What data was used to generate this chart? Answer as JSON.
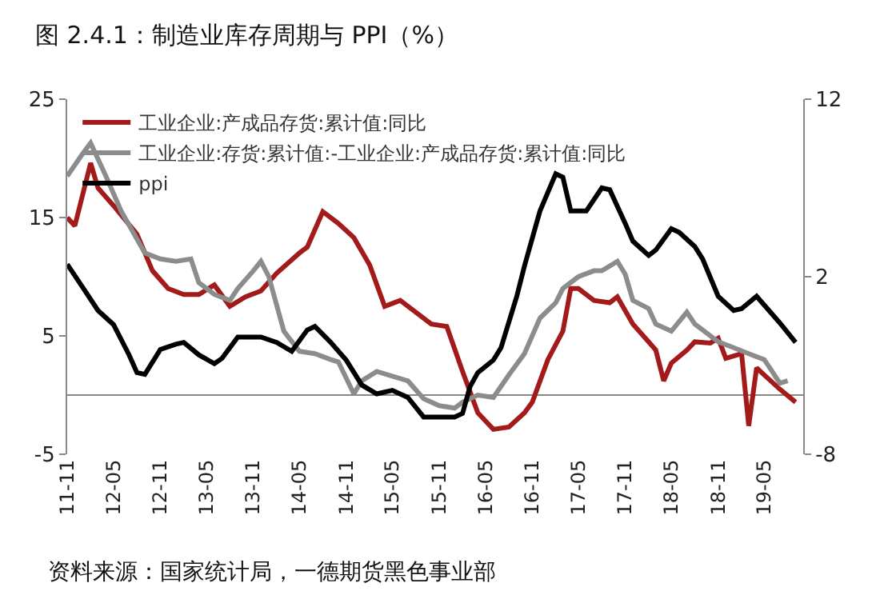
{
  "chart_data": {
    "type": "line",
    "title": "图 2.4.1：制造业库存周期与 PPI（%）",
    "annotations": [
      "资料来源：国家统计局，一德期货黑色事业部"
    ],
    "series": [
      {
        "name": "工业企业:产成品存货:累计值:同比",
        "color": "#a31a1a",
        "x": [
          "2011-11",
          "2011-12",
          "2012-02",
          "2012-03",
          "2012-05",
          "2012-08",
          "2012-10",
          "2012-12",
          "2013-02",
          "2013-04",
          "2013-06",
          "2013-08",
          "2013-10",
          "2013-12",
          "2014-02",
          "2014-05",
          "2014-06",
          "2014-08",
          "2014-10",
          "2014-12",
          "2015-02",
          "2015-04",
          "2015-06",
          "2015-08",
          "2015-10",
          "2015-12",
          "2016-02",
          "2016-04",
          "2016-06",
          "2016-08",
          "2016-10",
          "2016-11",
          "2017-01",
          "2017-03",
          "2017-04",
          "2017-05",
          "2017-07",
          "2017-09",
          "2017-10",
          "2017-12",
          "2018-02",
          "2018-03",
          "2018-04",
          "2018-05",
          "2018-07",
          "2018-08",
          "2018-10",
          "2018-11",
          "2018-12",
          "2019-02",
          "2019-03",
          "2019-04",
          "2019-05",
          "2019-07",
          "2019-09"
        ],
        "values": [
          15,
          14.3,
          19.6,
          17.5,
          16,
          13.6,
          10.5,
          9,
          8.5,
          8.5,
          9.3,
          7.5,
          8.3,
          8.8,
          10.3,
          12,
          12.5,
          15.5,
          14.5,
          13.3,
          11,
          7.5,
          8,
          7,
          6,
          5.8,
          2,
          -1.5,
          -2.9,
          -2.7,
          -1.5,
          -0.6,
          3,
          5.4,
          9,
          9,
          8,
          7.8,
          8.3,
          6,
          4.5,
          3.8,
          1.2,
          2.7,
          3.8,
          4.5,
          4.4,
          4.8,
          3.1,
          3.5,
          -2.6,
          2.3,
          1.7,
          0.5,
          -0.6
        ]
      },
      {
        "name": "工业企业:存货:累计值:-工业企业:产成品存货:累计值:同比",
        "color": "#8c8c8c",
        "x": [
          "2011-11",
          "2012-01",
          "2012-02",
          "2012-04",
          "2012-06",
          "2012-09",
          "2012-11",
          "2013-01",
          "2013-03",
          "2013-04",
          "2013-06",
          "2013-08",
          "2013-09",
          "2013-11",
          "2013-12",
          "2014-01",
          "2014-03",
          "2014-05",
          "2014-07",
          "2014-09",
          "2014-10",
          "2014-12",
          "2015-01",
          "2015-03",
          "2015-05",
          "2015-07",
          "2015-09",
          "2015-11",
          "2016-01",
          "2016-02",
          "2016-04",
          "2016-06",
          "2016-08",
          "2016-10",
          "2016-12",
          "2017-02",
          "2017-03",
          "2017-05",
          "2017-07",
          "2017-08",
          "2017-10",
          "2017-11",
          "2017-12",
          "2018-02",
          "2018-03",
          "2018-05",
          "2018-07",
          "2018-08",
          "2018-11",
          "2019-01",
          "2019-03",
          "2019-05",
          "2019-06",
          "2019-07",
          "2019-08"
        ],
        "values": [
          18.5,
          20.4,
          21.3,
          18.5,
          15.5,
          12,
          11.5,
          11.3,
          11.5,
          9.5,
          8.5,
          8,
          9,
          10.5,
          11.3,
          10,
          5.4,
          3.7,
          3.5,
          3,
          2.8,
          0.1,
          1.2,
          2,
          1.6,
          1.2,
          -0.3,
          -0.9,
          -1.1,
          -0.6,
          0,
          -0.2,
          1.7,
          3.5,
          6.5,
          7.8,
          9,
          10,
          10.5,
          10.5,
          11.3,
          10.2,
          8,
          7.3,
          6,
          5.4,
          7,
          6,
          4.5,
          4,
          3.5,
          3,
          2,
          1,
          1.2
        ]
      },
      {
        "name": "ppi",
        "color": "#000000",
        "axis": "y2",
        "x": [
          "2011-11",
          "2012-01",
          "2012-03",
          "2012-05",
          "2012-07",
          "2012-08",
          "2012-09",
          "2012-11",
          "2013-01",
          "2013-02",
          "2013-04",
          "2013-06",
          "2013-07",
          "2013-09",
          "2013-10",
          "2013-12",
          "2014-02",
          "2014-04",
          "2014-06",
          "2014-07",
          "2014-09",
          "2014-11",
          "2015-01",
          "2015-03",
          "2015-05",
          "2015-07",
          "2015-09",
          "2015-11",
          "2016-01",
          "2016-02",
          "2016-03",
          "2016-04",
          "2016-06",
          "2016-07",
          "2016-09",
          "2016-10",
          "2016-12",
          "2017-02",
          "2017-03",
          "2017-04",
          "2017-06",
          "2017-08",
          "2017-09",
          "2017-11",
          "2017-12",
          "2018-02",
          "2018-03",
          "2018-05",
          "2018-06",
          "2018-08",
          "2018-09",
          "2018-11",
          "2019-01",
          "2019-02",
          "2019-04",
          "2019-05",
          "2019-07",
          "2019-09"
        ],
        "values": [
          2.7,
          1.4,
          0.1,
          -0.7,
          -2.4,
          -3.4,
          -3.5,
          -2.1,
          -1.8,
          -1.7,
          -2.4,
          -2.9,
          -2.6,
          -1.4,
          -1.4,
          -1.4,
          -1.7,
          -2.2,
          -1,
          -0.8,
          -1.7,
          -2.7,
          -4.1,
          -4.6,
          -4.4,
          -4.8,
          -5.9,
          -5.9,
          -5.9,
          -5.7,
          -4.2,
          -3.4,
          -2.7,
          -2,
          0.9,
          2.6,
          5.7,
          7.8,
          7.6,
          5.7,
          5.7,
          7,
          6.9,
          5,
          4,
          3.2,
          3.5,
          4.7,
          4.5,
          3.7,
          3,
          0.9,
          0.1,
          0.2,
          0.9,
          0.4,
          -0.6,
          -1.7
        ]
      }
    ],
    "xlim": [
      "2011-11",
      "2019-10"
    ],
    "xticks": [
      {
        "value": "2011-11",
        "label": "11-11"
      },
      {
        "value": "2012-05",
        "label": "12-05"
      },
      {
        "value": "2012-11",
        "label": "12-11"
      },
      {
        "value": "2013-05",
        "label": "13-05"
      },
      {
        "value": "2013-11",
        "label": "13-11"
      },
      {
        "value": "2014-05",
        "label": "14-05"
      },
      {
        "value": "2014-11",
        "label": "14-11"
      },
      {
        "value": "2015-05",
        "label": "15-05"
      },
      {
        "value": "2015-11",
        "label": "15-11"
      },
      {
        "value": "2016-05",
        "label": "16-05"
      },
      {
        "value": "2016-11",
        "label": "16-11"
      },
      {
        "value": "2017-05",
        "label": "17-05"
      },
      {
        "value": "2017-11",
        "label": "17-11"
      },
      {
        "value": "2018-05",
        "label": "18-05"
      },
      {
        "value": "2018-11",
        "label": "18-11"
      },
      {
        "value": "2019-05",
        "label": "19-05"
      }
    ],
    "ylim": [
      -5,
      25
    ],
    "yticks": [
      -5,
      5,
      15,
      25
    ],
    "y2lim": [
      -8,
      12
    ],
    "y2ticks": [
      -8,
      2,
      12
    ],
    "grid": false,
    "legend": "top left",
    "marker": "none",
    "line_style": "solid"
  }
}
